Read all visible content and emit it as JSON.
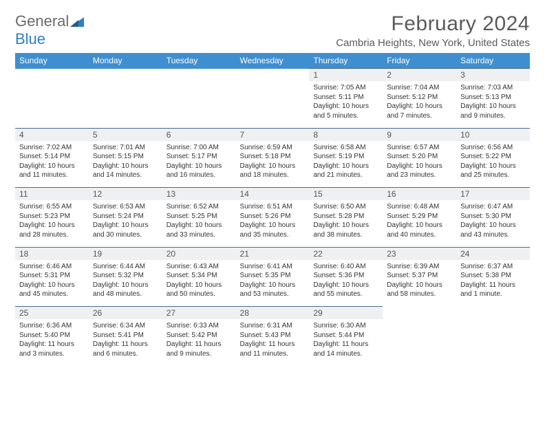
{
  "logo": {
    "text1": "General",
    "text2": "Blue"
  },
  "title": "February 2024",
  "location": "Cambria Heights, New York, United States",
  "colors": {
    "header_bg": "#3f8fd0",
    "daynum_bg": "#eef0f2",
    "daynum_border": "#4a6a8a",
    "text": "#333333",
    "title_text": "#5a5a5a",
    "logo_gray": "#6a6a6a",
    "logo_blue": "#2f7fc2"
  },
  "day_headers": [
    "Sunday",
    "Monday",
    "Tuesday",
    "Wednesday",
    "Thursday",
    "Friday",
    "Saturday"
  ],
  "weeks": [
    [
      null,
      null,
      null,
      null,
      {
        "n": "1",
        "sr": "7:05 AM",
        "ss": "5:11 PM",
        "dl": "10 hours and 5 minutes."
      },
      {
        "n": "2",
        "sr": "7:04 AM",
        "ss": "5:12 PM",
        "dl": "10 hours and 7 minutes."
      },
      {
        "n": "3",
        "sr": "7:03 AM",
        "ss": "5:13 PM",
        "dl": "10 hours and 9 minutes."
      }
    ],
    [
      {
        "n": "4",
        "sr": "7:02 AM",
        "ss": "5:14 PM",
        "dl": "10 hours and 11 minutes."
      },
      {
        "n": "5",
        "sr": "7:01 AM",
        "ss": "5:15 PM",
        "dl": "10 hours and 14 minutes."
      },
      {
        "n": "6",
        "sr": "7:00 AM",
        "ss": "5:17 PM",
        "dl": "10 hours and 16 minutes."
      },
      {
        "n": "7",
        "sr": "6:59 AM",
        "ss": "5:18 PM",
        "dl": "10 hours and 18 minutes."
      },
      {
        "n": "8",
        "sr": "6:58 AM",
        "ss": "5:19 PM",
        "dl": "10 hours and 21 minutes."
      },
      {
        "n": "9",
        "sr": "6:57 AM",
        "ss": "5:20 PM",
        "dl": "10 hours and 23 minutes."
      },
      {
        "n": "10",
        "sr": "6:56 AM",
        "ss": "5:22 PM",
        "dl": "10 hours and 25 minutes."
      }
    ],
    [
      {
        "n": "11",
        "sr": "6:55 AM",
        "ss": "5:23 PM",
        "dl": "10 hours and 28 minutes."
      },
      {
        "n": "12",
        "sr": "6:53 AM",
        "ss": "5:24 PM",
        "dl": "10 hours and 30 minutes."
      },
      {
        "n": "13",
        "sr": "6:52 AM",
        "ss": "5:25 PM",
        "dl": "10 hours and 33 minutes."
      },
      {
        "n": "14",
        "sr": "6:51 AM",
        "ss": "5:26 PM",
        "dl": "10 hours and 35 minutes."
      },
      {
        "n": "15",
        "sr": "6:50 AM",
        "ss": "5:28 PM",
        "dl": "10 hours and 38 minutes."
      },
      {
        "n": "16",
        "sr": "6:48 AM",
        "ss": "5:29 PM",
        "dl": "10 hours and 40 minutes."
      },
      {
        "n": "17",
        "sr": "6:47 AM",
        "ss": "5:30 PM",
        "dl": "10 hours and 43 minutes."
      }
    ],
    [
      {
        "n": "18",
        "sr": "6:46 AM",
        "ss": "5:31 PM",
        "dl": "10 hours and 45 minutes."
      },
      {
        "n": "19",
        "sr": "6:44 AM",
        "ss": "5:32 PM",
        "dl": "10 hours and 48 minutes."
      },
      {
        "n": "20",
        "sr": "6:43 AM",
        "ss": "5:34 PM",
        "dl": "10 hours and 50 minutes."
      },
      {
        "n": "21",
        "sr": "6:41 AM",
        "ss": "5:35 PM",
        "dl": "10 hours and 53 minutes."
      },
      {
        "n": "22",
        "sr": "6:40 AM",
        "ss": "5:36 PM",
        "dl": "10 hours and 55 minutes."
      },
      {
        "n": "23",
        "sr": "6:39 AM",
        "ss": "5:37 PM",
        "dl": "10 hours and 58 minutes."
      },
      {
        "n": "24",
        "sr": "6:37 AM",
        "ss": "5:38 PM",
        "dl": "11 hours and 1 minute."
      }
    ],
    [
      {
        "n": "25",
        "sr": "6:36 AM",
        "ss": "5:40 PM",
        "dl": "11 hours and 3 minutes."
      },
      {
        "n": "26",
        "sr": "6:34 AM",
        "ss": "5:41 PM",
        "dl": "11 hours and 6 minutes."
      },
      {
        "n": "27",
        "sr": "6:33 AM",
        "ss": "5:42 PM",
        "dl": "11 hours and 9 minutes."
      },
      {
        "n": "28",
        "sr": "6:31 AM",
        "ss": "5:43 PM",
        "dl": "11 hours and 11 minutes."
      },
      {
        "n": "29",
        "sr": "6:30 AM",
        "ss": "5:44 PM",
        "dl": "11 hours and 14 minutes."
      },
      null,
      null
    ]
  ],
  "labels": {
    "sunrise": "Sunrise: ",
    "sunset": "Sunset: ",
    "daylight": "Daylight: "
  }
}
